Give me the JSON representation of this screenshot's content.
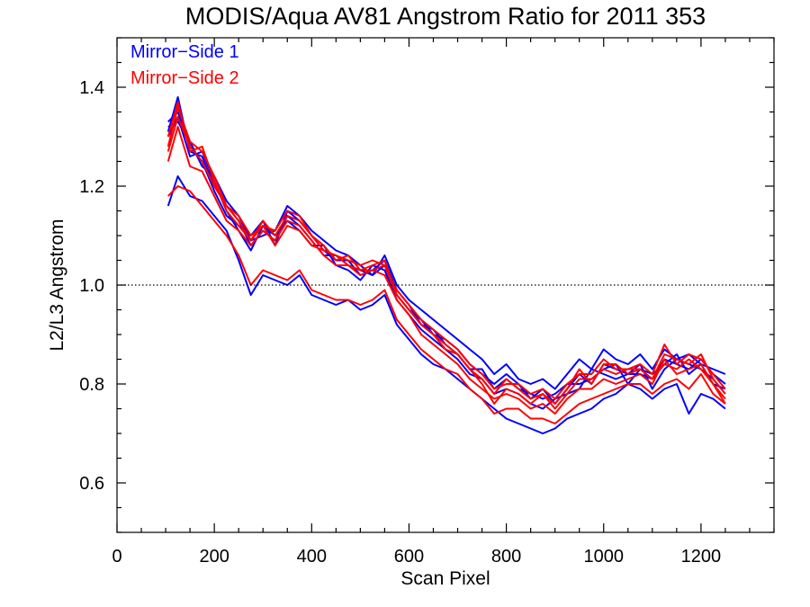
{
  "chart_data": {
    "type": "line",
    "title": "MODIS/Aqua AV81 Angstrom Ratio for 2011 353",
    "xlabel": "Scan Pixel",
    "ylabel": "L2/L3 Angstrom",
    "xlim": [
      0,
      1350
    ],
    "ylim": [
      0.5,
      1.5
    ],
    "x_ticks": [
      0,
      200,
      400,
      600,
      800,
      1000,
      1200
    ],
    "y_ticks": [
      0.6,
      0.8,
      1.0,
      1.2,
      1.4
    ],
    "x_tick_labels": [
      "0",
      "200",
      "400",
      "600",
      "800",
      "1000",
      "1200"
    ],
    "y_tick_labels": [
      "0.6",
      "0.8",
      "1.0",
      "1.2",
      "1.4"
    ],
    "reference_line": {
      "y": 1.0,
      "style": "dotted"
    },
    "legend": {
      "placement": "top-left",
      "entries": [
        {
          "label": "Mirror−Side 1",
          "color": "#0000ff"
        },
        {
          "label": "Mirror−Side 2",
          "color": "#ff0000"
        }
      ]
    },
    "x": [
      105,
      125,
      150,
      175,
      200,
      225,
      250,
      275,
      300,
      325,
      350,
      375,
      400,
      425,
      450,
      475,
      500,
      525,
      550,
      575,
      600,
      625,
      650,
      675,
      700,
      725,
      750,
      775,
      800,
      825,
      850,
      875,
      900,
      925,
      950,
      975,
      1000,
      1025,
      1050,
      1075,
      1100,
      1125,
      1150,
      1175,
      1200,
      1225,
      1250
    ],
    "series": [
      {
        "color": "#0000ff",
        "values": [
          1.31,
          1.38,
          1.27,
          1.26,
          1.2,
          1.16,
          1.13,
          1.08,
          1.11,
          1.09,
          1.14,
          1.12,
          1.09,
          1.06,
          1.06,
          1.04,
          1.03,
          1.02,
          1.04,
          0.98,
          0.95,
          0.93,
          0.9,
          0.89,
          0.87,
          0.84,
          0.82,
          0.8,
          0.82,
          0.8,
          0.77,
          0.79,
          0.76,
          0.79,
          0.82,
          0.8,
          0.84,
          0.83,
          0.82,
          0.82,
          0.81,
          0.85,
          0.84,
          0.83,
          0.85,
          0.82,
          0.8
        ]
      },
      {
        "color": "#0000ff",
        "values": [
          1.33,
          1.35,
          1.28,
          1.25,
          1.19,
          1.14,
          1.12,
          1.1,
          1.13,
          1.08,
          1.15,
          1.13,
          1.1,
          1.07,
          1.05,
          1.05,
          1.02,
          1.03,
          1.05,
          0.99,
          0.96,
          0.92,
          0.91,
          0.88,
          0.86,
          0.83,
          0.83,
          0.79,
          0.81,
          0.79,
          0.78,
          0.77,
          0.78,
          0.8,
          0.8,
          0.81,
          0.83,
          0.84,
          0.8,
          0.83,
          0.82,
          0.84,
          0.86,
          0.82,
          0.84,
          0.8,
          0.79
        ]
      },
      {
        "color": "#0000ff",
        "values": [
          1.3,
          1.34,
          1.26,
          1.27,
          1.21,
          1.15,
          1.11,
          1.07,
          1.12,
          1.1,
          1.13,
          1.11,
          1.08,
          1.08,
          1.04,
          1.03,
          1.01,
          1.04,
          1.03,
          0.97,
          0.94,
          0.91,
          0.89,
          0.87,
          0.85,
          0.82,
          0.81,
          0.78,
          0.79,
          0.78,
          0.76,
          0.75,
          0.77,
          0.78,
          0.79,
          0.83,
          0.82,
          0.81,
          0.82,
          0.84,
          0.79,
          0.83,
          0.85,
          0.84,
          0.83,
          0.81,
          0.78
        ]
      },
      {
        "color": "#0000ff",
        "values": [
          1.16,
          1.22,
          1.18,
          1.17,
          1.14,
          1.11,
          1.05,
          0.98,
          1.02,
          1.01,
          1.0,
          1.02,
          0.98,
          0.97,
          0.96,
          0.97,
          0.95,
          0.96,
          0.98,
          0.92,
          0.89,
          0.86,
          0.84,
          0.83,
          0.81,
          0.79,
          0.77,
          0.75,
          0.73,
          0.72,
          0.71,
          0.7,
          0.71,
          0.73,
          0.74,
          0.75,
          0.77,
          0.78,
          0.8,
          0.79,
          0.77,
          0.79,
          0.8,
          0.74,
          0.78,
          0.77,
          0.75
        ]
      },
      {
        "color": "#0000ff",
        "values": [
          1.32,
          1.33,
          1.29,
          1.24,
          1.22,
          1.17,
          1.14,
          1.09,
          1.1,
          1.11,
          1.16,
          1.14,
          1.11,
          1.09,
          1.07,
          1.06,
          1.04,
          1.02,
          1.06,
          1.0,
          0.97,
          0.95,
          0.93,
          0.91,
          0.89,
          0.87,
          0.85,
          0.82,
          0.84,
          0.81,
          0.8,
          0.81,
          0.79,
          0.82,
          0.85,
          0.83,
          0.87,
          0.85,
          0.84,
          0.86,
          0.83,
          0.87,
          0.85,
          0.86,
          0.84,
          0.83,
          0.82
        ]
      },
      {
        "color": "#ff0000",
        "values": [
          1.28,
          1.36,
          1.29,
          1.27,
          1.22,
          1.16,
          1.14,
          1.1,
          1.12,
          1.11,
          1.15,
          1.14,
          1.1,
          1.07,
          1.06,
          1.05,
          1.04,
          1.05,
          1.04,
          0.99,
          0.96,
          0.93,
          0.91,
          0.89,
          0.87,
          0.84,
          0.82,
          0.79,
          0.8,
          0.8,
          0.78,
          0.79,
          0.77,
          0.8,
          0.82,
          0.82,
          0.85,
          0.83,
          0.83,
          0.84,
          0.82,
          0.88,
          0.84,
          0.86,
          0.85,
          0.82,
          0.79
        ]
      },
      {
        "color": "#ff0000",
        "values": [
          1.25,
          1.32,
          1.24,
          1.23,
          1.18,
          1.13,
          1.11,
          1.08,
          1.11,
          1.09,
          1.13,
          1.12,
          1.09,
          1.06,
          1.04,
          1.04,
          1.02,
          1.03,
          1.02,
          0.97,
          0.94,
          0.9,
          0.88,
          0.86,
          0.84,
          0.81,
          0.79,
          0.77,
          0.78,
          0.77,
          0.75,
          0.76,
          0.74,
          0.77,
          0.79,
          0.79,
          0.81,
          0.8,
          0.81,
          0.82,
          0.8,
          0.85,
          0.82,
          0.83,
          0.84,
          0.8,
          0.77
        ]
      },
      {
        "color": "#ff0000",
        "values": [
          1.3,
          1.37,
          1.27,
          1.28,
          1.21,
          1.15,
          1.12,
          1.09,
          1.13,
          1.1,
          1.14,
          1.13,
          1.1,
          1.08,
          1.05,
          1.06,
          1.03,
          1.04,
          1.05,
          0.98,
          0.95,
          0.92,
          0.9,
          0.88,
          0.86,
          0.83,
          0.81,
          0.78,
          0.81,
          0.79,
          0.77,
          0.78,
          0.76,
          0.79,
          0.83,
          0.8,
          0.84,
          0.84,
          0.82,
          0.83,
          0.81,
          0.86,
          0.85,
          0.84,
          0.86,
          0.81,
          0.78
        ]
      },
      {
        "color": "#ff0000",
        "values": [
          1.18,
          1.2,
          1.19,
          1.16,
          1.13,
          1.1,
          1.06,
          1.0,
          1.03,
          1.02,
          1.01,
          1.03,
          0.99,
          0.98,
          0.97,
          0.97,
          0.96,
          0.97,
          0.99,
          0.93,
          0.9,
          0.87,
          0.85,
          0.83,
          0.82,
          0.79,
          0.77,
          0.74,
          0.75,
          0.75,
          0.73,
          0.73,
          0.72,
          0.74,
          0.76,
          0.77,
          0.78,
          0.79,
          0.8,
          0.8,
          0.78,
          0.8,
          0.81,
          0.79,
          0.82,
          0.78,
          0.76
        ]
      },
      {
        "color": "#ff0000",
        "values": [
          1.27,
          1.34,
          1.28,
          1.25,
          1.2,
          1.16,
          1.13,
          1.09,
          1.12,
          1.08,
          1.12,
          1.11,
          1.08,
          1.07,
          1.06,
          1.04,
          1.03,
          1.03,
          1.04,
          0.98,
          0.95,
          0.92,
          0.9,
          0.87,
          0.86,
          0.83,
          0.8,
          0.76,
          0.79,
          0.78,
          0.76,
          0.78,
          0.75,
          0.78,
          0.81,
          0.81,
          0.83,
          0.82,
          0.83,
          0.83,
          0.81,
          0.84,
          0.83,
          0.85,
          0.83,
          0.8,
          0.76
        ]
      }
    ]
  }
}
